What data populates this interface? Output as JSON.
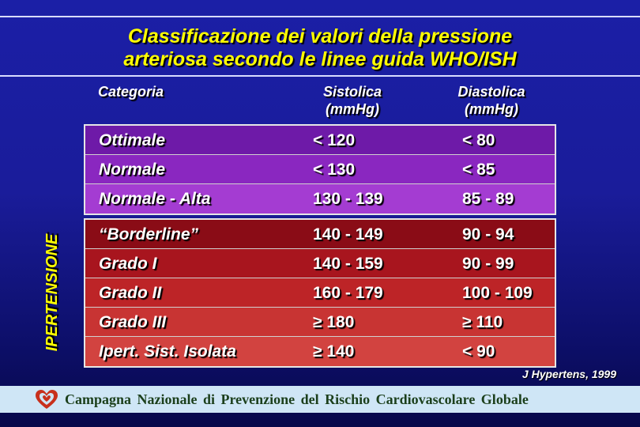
{
  "title": {
    "line1": "Classificazione dei valori della pressione",
    "line2": "arteriosa secondo le linee guida WHO/ISH"
  },
  "headers": {
    "categoria": "Categoria",
    "sistolica": "Sistolica",
    "sistolica_unit": "(mmHg)",
    "diastolica": "Diastolica",
    "diastolica_unit": "(mmHg)"
  },
  "normal_rows": [
    {
      "categoria": "Ottimale",
      "sistolica": "< 120",
      "diastolica": "< 80"
    },
    {
      "categoria": "Normale",
      "sistolica": "< 130",
      "diastolica": "< 85"
    },
    {
      "categoria": "Normale - Alta",
      "sistolica": "130 - 139",
      "diastolica": "85 - 89"
    }
  ],
  "hypertension_label": "IPERTENSIONE",
  "hypertension_rows": [
    {
      "categoria": "“Borderline”",
      "sistolica": "140 - 149",
      "diastolica": "90 - 94"
    },
    {
      "categoria": "Grado I",
      "sistolica": "140 - 159",
      "diastolica": "90 - 99"
    },
    {
      "categoria": "Grado II",
      "sistolica": "160 - 179",
      "diastolica": "100 - 109"
    },
    {
      "categoria": "Grado III",
      "sistolica": "≥ 180",
      "diastolica": "≥ 110"
    },
    {
      "categoria": "Ipert. Sist. Isolata",
      "sistolica": "≥ 140",
      "diastolica": "< 90"
    }
  ],
  "source": "J Hypertens, 1999",
  "footer": {
    "text": "Campagna Nazionale di Prevenzione del Rischio Cardiovascolare Globale",
    "logo_icon": "heart-logo-icon"
  },
  "colors": {
    "background": "#1b1fa6",
    "title": "#ffff00",
    "normal_rows": [
      "#6e1aa8",
      "#8a27c0",
      "#a43cd2"
    ],
    "hypertension_rows": [
      "#8a0c16",
      "#a8151e",
      "#bd2427",
      "#c83433",
      "#d24340"
    ],
    "footer_bg": "#cfe6f6",
    "footer_text": "#1b3f1b"
  }
}
